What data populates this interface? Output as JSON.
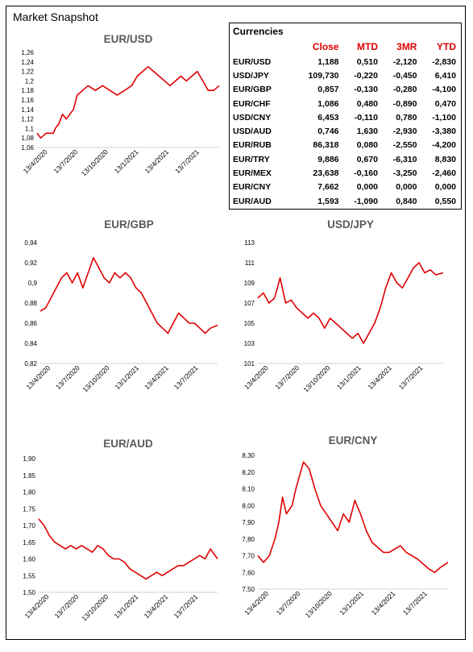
{
  "page_title": "Market Snapshot",
  "table": {
    "title": "Currencies",
    "headers": [
      "",
      "Close",
      "MTD",
      "3MR",
      "YTD"
    ],
    "rows": [
      [
        "EUR/USD",
        "1,188",
        "0,510",
        "-2,120",
        "-2,830"
      ],
      [
        "USD/JPY",
        "109,730",
        "-0,220",
        "-0,450",
        "6,410"
      ],
      [
        "EUR/GBP",
        "0,857",
        "-0,130",
        "-0,280",
        "-4,100"
      ],
      [
        "EUR/CHF",
        "1,086",
        "0,480",
        "-0,890",
        "0,470"
      ],
      [
        "USD/CNY",
        "6,453",
        "-0,110",
        "0,780",
        "-1,100"
      ],
      [
        "USD/AUD",
        "0,746",
        "1,630",
        "-2,930",
        "-3,380"
      ],
      [
        "EUR/RUB",
        "86,318",
        "0,080",
        "-2,550",
        "-4,200"
      ],
      [
        "EUR/TRY",
        "9,886",
        "0,670",
        "-6,310",
        "8,830"
      ],
      [
        "EUR/MEX",
        "23,638",
        "-0,160",
        "-3,250",
        "-2,460"
      ],
      [
        "EUR/CNY",
        "7,662",
        "0,000",
        "0,000",
        "0,000"
      ],
      [
        "EUR/AUD",
        "1,593",
        "-1,090",
        "0,840",
        "0,550"
      ]
    ]
  },
  "colors": {
    "series": "#e00000",
    "header": "#e00000",
    "title": "#595959"
  },
  "chart_data": [
    {
      "type": "line",
      "title": "EUR/USD",
      "x_ticks": [
        "13/4/2020",
        "13/7/2020",
        "13/10/2020",
        "13/1/2021",
        "13/4/2021",
        "13/7/2021"
      ],
      "y_ticks": [
        "1,06",
        "1,08",
        "1,1",
        "1,12",
        "1,14",
        "1,16",
        "1,18",
        "1,2",
        "1,22",
        "1,24",
        "1,26"
      ],
      "ylim": [
        1.06,
        1.26
      ],
      "points": [
        [
          0,
          1.09
        ],
        [
          0.02,
          1.08
        ],
        [
          0.05,
          1.09
        ],
        [
          0.09,
          1.09
        ],
        [
          0.1,
          1.1
        ],
        [
          0.12,
          1.11
        ],
        [
          0.14,
          1.13
        ],
        [
          0.16,
          1.12
        ],
        [
          0.18,
          1.13
        ],
        [
          0.2,
          1.14
        ],
        [
          0.22,
          1.17
        ],
        [
          0.25,
          1.18
        ],
        [
          0.28,
          1.19
        ],
        [
          0.32,
          1.18
        ],
        [
          0.36,
          1.19
        ],
        [
          0.4,
          1.18
        ],
        [
          0.44,
          1.17
        ],
        [
          0.48,
          1.18
        ],
        [
          0.52,
          1.19
        ],
        [
          0.55,
          1.21
        ],
        [
          0.58,
          1.22
        ],
        [
          0.61,
          1.23
        ],
        [
          0.64,
          1.22
        ],
        [
          0.67,
          1.21
        ],
        [
          0.7,
          1.2
        ],
        [
          0.73,
          1.19
        ],
        [
          0.76,
          1.2
        ],
        [
          0.79,
          1.21
        ],
        [
          0.82,
          1.2
        ],
        [
          0.85,
          1.21
        ],
        [
          0.88,
          1.22
        ],
        [
          0.91,
          1.2
        ],
        [
          0.94,
          1.18
        ],
        [
          0.97,
          1.18
        ],
        [
          1,
          1.19
        ]
      ]
    },
    {
      "type": "line",
      "title": "EUR/GBP",
      "x_ticks": [
        "13/4/2020",
        "13/7/2020",
        "13/10/2020",
        "13/1/2021",
        "13/4/2021",
        "13/7/2021"
      ],
      "y_ticks": [
        "0,82",
        "0,84",
        "0,86",
        "0,88",
        "0,9",
        "0,92",
        "0,94"
      ],
      "ylim": [
        0.82,
        0.94
      ],
      "points": [
        [
          0,
          0.872
        ],
        [
          0.03,
          0.875
        ],
        [
          0.06,
          0.885
        ],
        [
          0.09,
          0.895
        ],
        [
          0.12,
          0.905
        ],
        [
          0.15,
          0.91
        ],
        [
          0.18,
          0.9
        ],
        [
          0.21,
          0.91
        ],
        [
          0.24,
          0.895
        ],
        [
          0.27,
          0.91
        ],
        [
          0.3,
          0.925
        ],
        [
          0.33,
          0.915
        ],
        [
          0.36,
          0.905
        ],
        [
          0.39,
          0.9
        ],
        [
          0.42,
          0.91
        ],
        [
          0.45,
          0.905
        ],
        [
          0.48,
          0.91
        ],
        [
          0.51,
          0.905
        ],
        [
          0.54,
          0.895
        ],
        [
          0.57,
          0.89
        ],
        [
          0.6,
          0.88
        ],
        [
          0.63,
          0.87
        ],
        [
          0.66,
          0.86
        ],
        [
          0.69,
          0.855
        ],
        [
          0.72,
          0.85
        ],
        [
          0.75,
          0.86
        ],
        [
          0.78,
          0.87
        ],
        [
          0.81,
          0.865
        ],
        [
          0.84,
          0.86
        ],
        [
          0.87,
          0.86
        ],
        [
          0.9,
          0.855
        ],
        [
          0.93,
          0.85
        ],
        [
          0.96,
          0.855
        ],
        [
          1,
          0.858
        ]
      ]
    },
    {
      "type": "line",
      "title": "USD/JPY",
      "x_ticks": [
        "13/4/2020",
        "13/7/2020",
        "13/10/2020",
        "13/1/2021",
        "13/4/2021",
        "13/7/2021"
      ],
      "y_ticks": [
        "101",
        "103",
        "105",
        "107",
        "109",
        "111",
        "113"
      ],
      "ylim": [
        101,
        113
      ],
      "points": [
        [
          0,
          107.5
        ],
        [
          0.03,
          108
        ],
        [
          0.06,
          107
        ],
        [
          0.09,
          107.5
        ],
        [
          0.12,
          109.5
        ],
        [
          0.15,
          107
        ],
        [
          0.18,
          107.3
        ],
        [
          0.21,
          106.5
        ],
        [
          0.24,
          106
        ],
        [
          0.27,
          105.5
        ],
        [
          0.3,
          106
        ],
        [
          0.33,
          105.5
        ],
        [
          0.36,
          104.5
        ],
        [
          0.39,
          105.5
        ],
        [
          0.42,
          105
        ],
        [
          0.45,
          104.5
        ],
        [
          0.48,
          104
        ],
        [
          0.51,
          103.5
        ],
        [
          0.54,
          104
        ],
        [
          0.57,
          103
        ],
        [
          0.6,
          104
        ],
        [
          0.63,
          105
        ],
        [
          0.66,
          106.5
        ],
        [
          0.69,
          108.5
        ],
        [
          0.72,
          110
        ],
        [
          0.75,
          109
        ],
        [
          0.78,
          108.5
        ],
        [
          0.81,
          109.5
        ],
        [
          0.84,
          110.5
        ],
        [
          0.87,
          111
        ],
        [
          0.9,
          110
        ],
        [
          0.93,
          110.3
        ],
        [
          0.96,
          109.8
        ],
        [
          1,
          110
        ]
      ]
    },
    {
      "type": "line",
      "title": "EUR/AUD",
      "x_ticks": [
        "13/4/2020",
        "13/7/2020",
        "13/10/2020",
        "13/1/2021",
        "13/4/2021",
        "13/7/2021"
      ],
      "y_ticks": [
        "1,50",
        "1,55",
        "1,60",
        "1,65",
        "1,70",
        "1,75",
        "1,80",
        "1,85",
        "1,90"
      ],
      "ylim": [
        1.5,
        1.9
      ],
      "points": [
        [
          0,
          1.72
        ],
        [
          0.03,
          1.7
        ],
        [
          0.06,
          1.67
        ],
        [
          0.09,
          1.65
        ],
        [
          0.12,
          1.64
        ],
        [
          0.15,
          1.63
        ],
        [
          0.18,
          1.64
        ],
        [
          0.21,
          1.63
        ],
        [
          0.24,
          1.64
        ],
        [
          0.27,
          1.63
        ],
        [
          0.3,
          1.62
        ],
        [
          0.33,
          1.64
        ],
        [
          0.36,
          1.63
        ],
        [
          0.39,
          1.61
        ],
        [
          0.42,
          1.6
        ],
        [
          0.45,
          1.6
        ],
        [
          0.48,
          1.59
        ],
        [
          0.51,
          1.57
        ],
        [
          0.54,
          1.56
        ],
        [
          0.57,
          1.55
        ],
        [
          0.6,
          1.54
        ],
        [
          0.63,
          1.55
        ],
        [
          0.66,
          1.56
        ],
        [
          0.69,
          1.55
        ],
        [
          0.72,
          1.56
        ],
        [
          0.75,
          1.57
        ],
        [
          0.78,
          1.58
        ],
        [
          0.81,
          1.58
        ],
        [
          0.84,
          1.59
        ],
        [
          0.87,
          1.6
        ],
        [
          0.9,
          1.61
        ],
        [
          0.93,
          1.6
        ],
        [
          0.96,
          1.63
        ],
        [
          1,
          1.6
        ]
      ]
    },
    {
      "type": "line",
      "title": "EUR/CNY",
      "x_ticks": [
        "13/4/2020",
        "13/7/2020",
        "13/10/2020",
        "13/1/2021",
        "13/4/2021",
        "13/7/2021"
      ],
      "y_ticks": [
        "7,50",
        "7,60",
        "7,70",
        "7,80",
        "7,90",
        "8,00",
        "8,10",
        "8,20",
        "8,30"
      ],
      "ylim": [
        7.5,
        8.3
      ],
      "points": [
        [
          0,
          7.7
        ],
        [
          0.03,
          7.66
        ],
        [
          0.06,
          7.7
        ],
        [
          0.09,
          7.8
        ],
        [
          0.11,
          7.9
        ],
        [
          0.13,
          8.05
        ],
        [
          0.15,
          7.95
        ],
        [
          0.18,
          8.0
        ],
        [
          0.2,
          8.1
        ],
        [
          0.22,
          8.18
        ],
        [
          0.24,
          8.26
        ],
        [
          0.27,
          8.22
        ],
        [
          0.3,
          8.1
        ],
        [
          0.33,
          8.0
        ],
        [
          0.36,
          7.95
        ],
        [
          0.39,
          7.9
        ],
        [
          0.42,
          7.85
        ],
        [
          0.45,
          7.95
        ],
        [
          0.48,
          7.9
        ],
        [
          0.51,
          8.03
        ],
        [
          0.54,
          7.95
        ],
        [
          0.57,
          7.85
        ],
        [
          0.6,
          7.78
        ],
        [
          0.63,
          7.75
        ],
        [
          0.66,
          7.72
        ],
        [
          0.69,
          7.72
        ],
        [
          0.72,
          7.74
        ],
        [
          0.75,
          7.76
        ],
        [
          0.78,
          7.72
        ],
        [
          0.81,
          7.7
        ],
        [
          0.84,
          7.68
        ],
        [
          0.87,
          7.65
        ],
        [
          0.9,
          7.62
        ],
        [
          0.93,
          7.6
        ],
        [
          0.96,
          7.63
        ],
        [
          1,
          7.66
        ]
      ]
    }
  ]
}
